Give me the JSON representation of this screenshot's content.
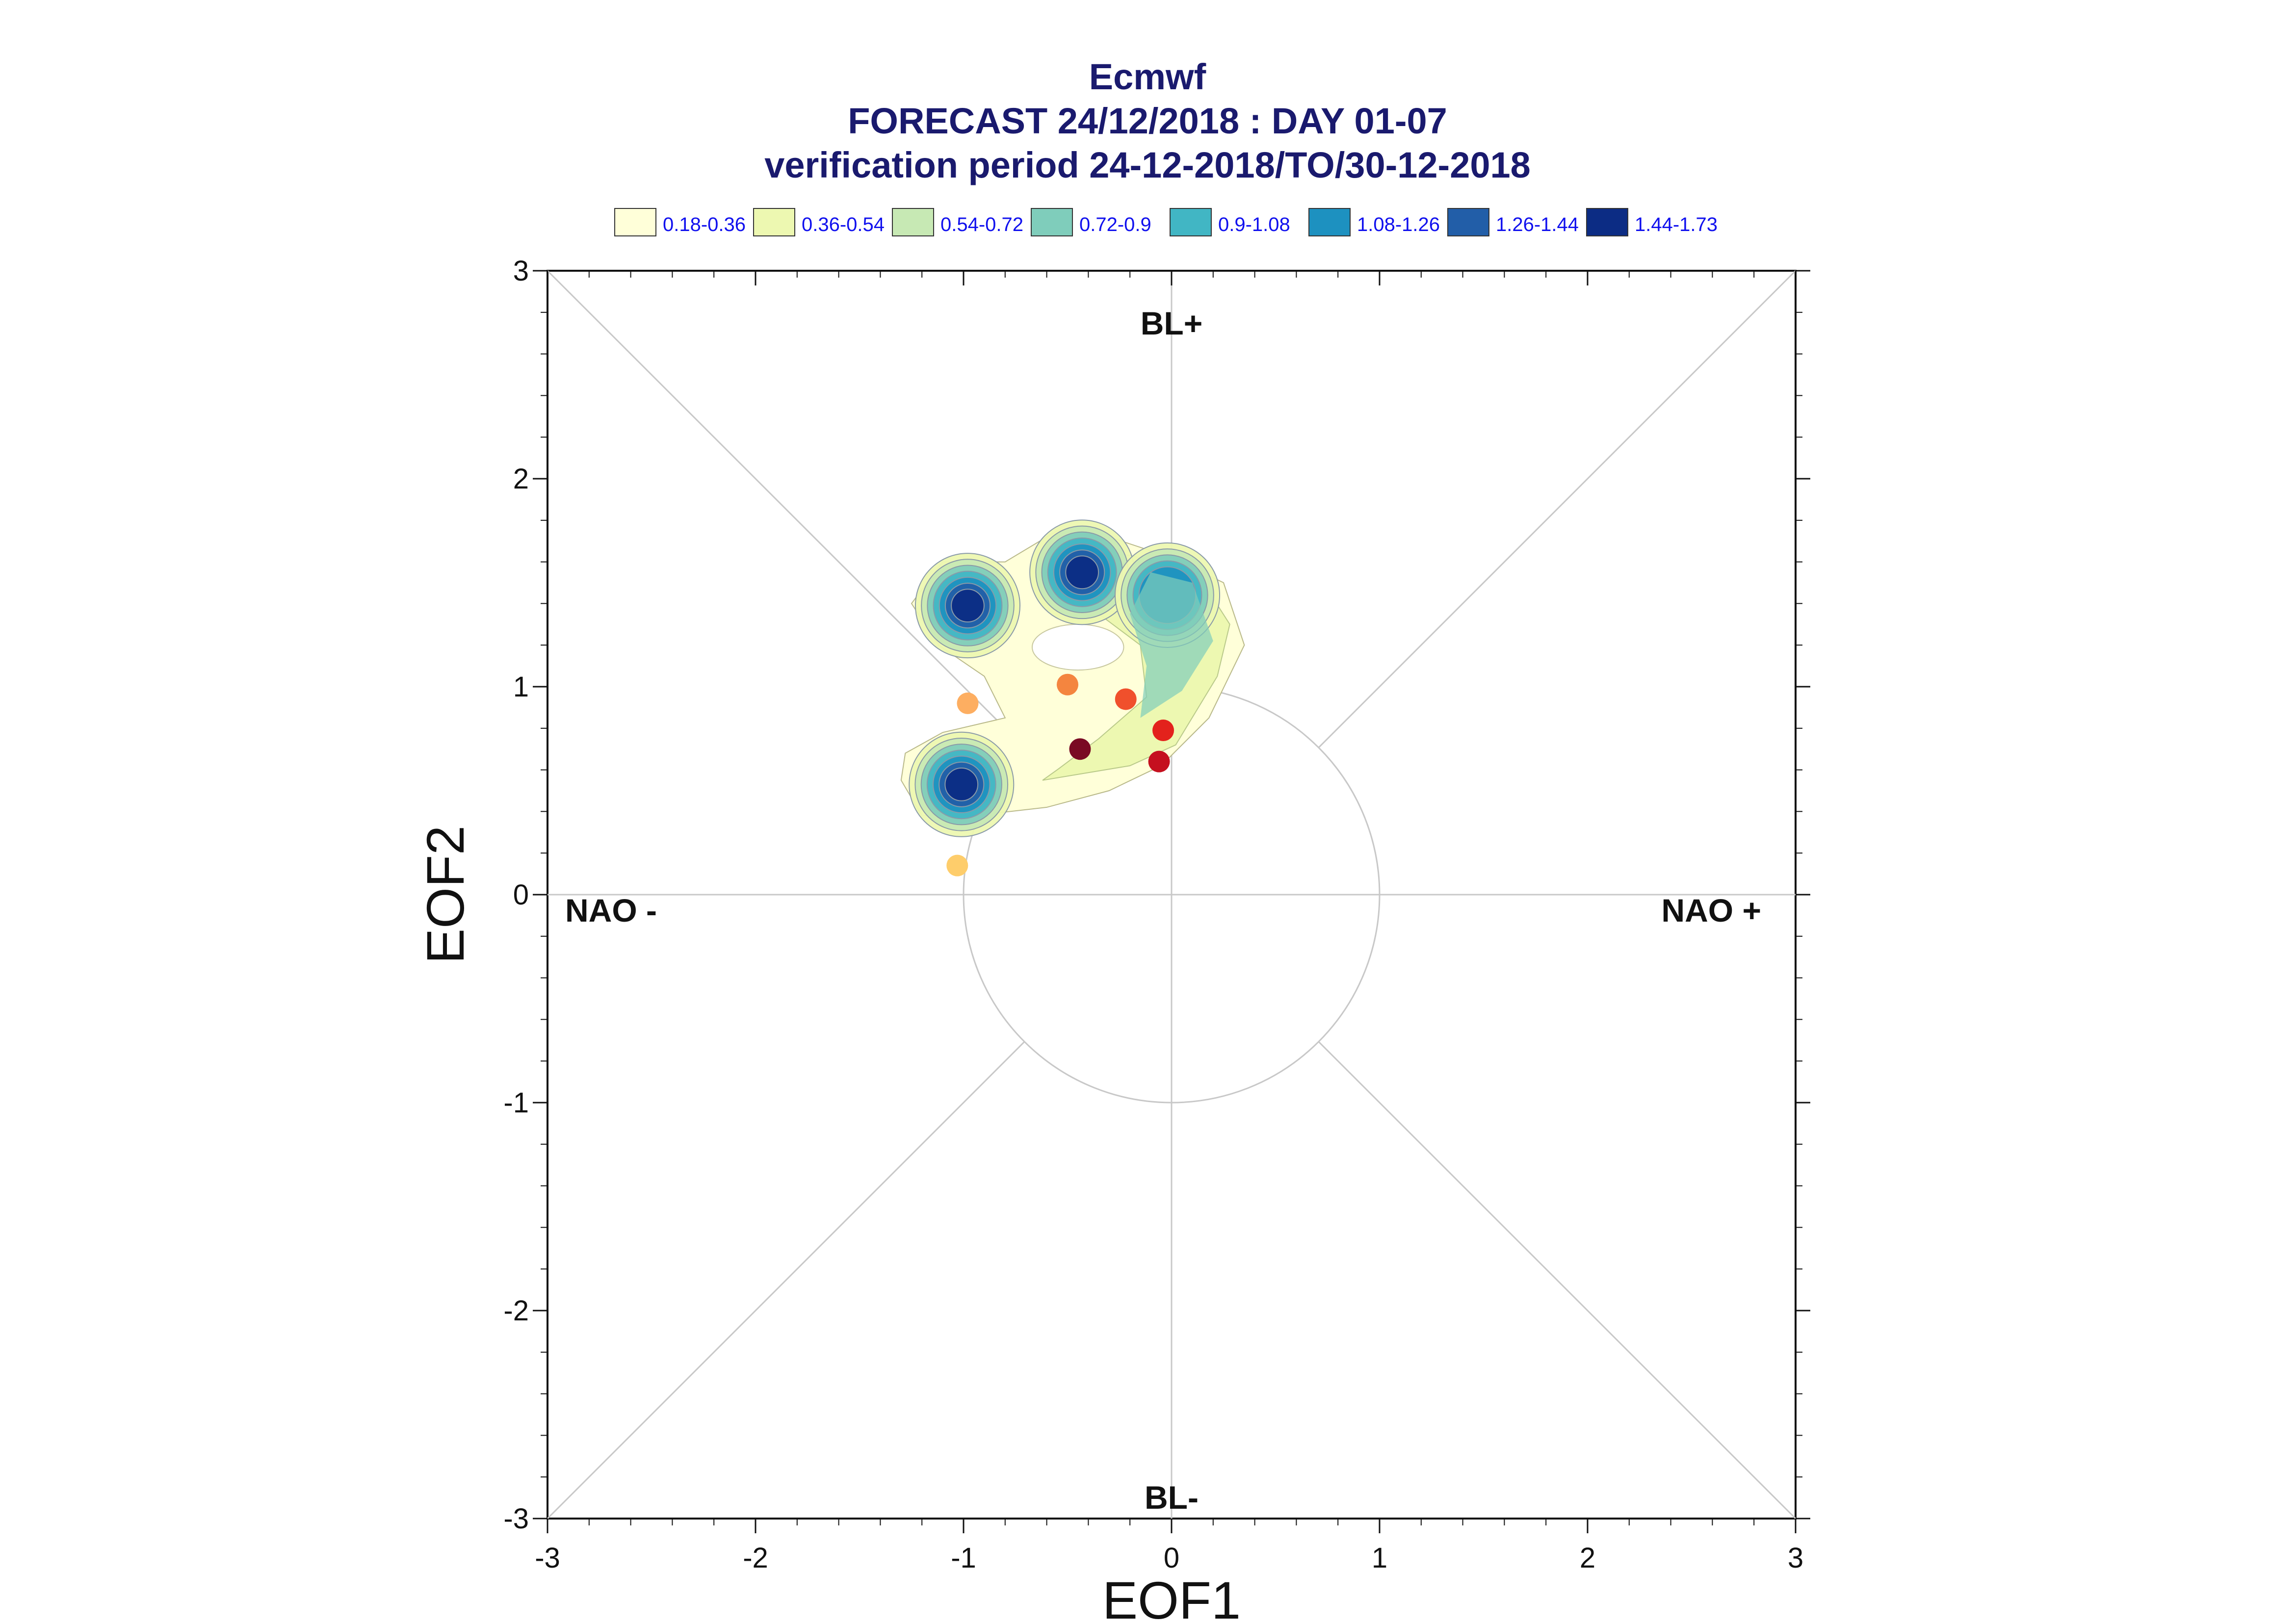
{
  "title_lines": [
    "Ecmwf",
    "FORECAST 24/12/2018 : DAY 01-07",
    "verification period 24-12-2018/TO/30-12-2018"
  ],
  "legend": [
    {
      "label": "0.18-0.36",
      "color": "#ffffd9"
    },
    {
      "label": "0.36-0.54",
      "color": "#edf8b1"
    },
    {
      "label": "0.54-0.72",
      "color": "#c7e9b4"
    },
    {
      "label": "0.72-0.9",
      "color": "#7fcdbb"
    },
    {
      "label": "0.9-1.08",
      "color": "#41b6c4"
    },
    {
      "label": "1.08-1.26",
      "color": "#1d91c0"
    },
    {
      "label": "1.26-1.44",
      "color": "#225ea8"
    },
    {
      "label": "1.44-1.73",
      "color": "#0c2c84"
    }
  ],
  "regime_labels": {
    "top": "BL+",
    "bottom": "BL-",
    "left": "NAO -",
    "right": "NAO +"
  },
  "chart_data": {
    "type": "scatter",
    "title": "Ecmwf FORECAST 24/12/2018 : DAY 01-07 verification period 24-12-2018/TO/30-12-2018",
    "xlabel": "EOF1",
    "ylabel": "EOF2",
    "xlim": [
      -3,
      3
    ],
    "ylim": [
      -3,
      3
    ],
    "x_ticks": [
      -3,
      -2,
      -1,
      0,
      1,
      2,
      3
    ],
    "y_ticks": [
      -3,
      -2,
      -1,
      0,
      1,
      2,
      3
    ],
    "reference_circle_radius": 1,
    "density_peaks": [
      {
        "x": -0.98,
        "y": 1.39,
        "value": 1.6
      },
      {
        "x": -0.43,
        "y": 1.55,
        "value": 1.55
      },
      {
        "x": -0.02,
        "y": 1.44,
        "value": 1.2
      },
      {
        "x": -1.01,
        "y": 0.53,
        "value": 1.6
      }
    ],
    "points": [
      {
        "x": -0.98,
        "y": 0.92,
        "color": "#fdae61"
      },
      {
        "x": -0.5,
        "y": 1.01,
        "color": "#f4853f"
      },
      {
        "x": -0.22,
        "y": 0.94,
        "color": "#f0502c"
      },
      {
        "x": -0.04,
        "y": 0.79,
        "color": "#e3221c"
      },
      {
        "x": -0.06,
        "y": 0.64,
        "color": "#c5101f"
      },
      {
        "x": -0.44,
        "y": 0.7,
        "color": "#7a0a23"
      },
      {
        "x": -1.03,
        "y": 0.14,
        "color": "#fecd6b"
      }
    ]
  }
}
